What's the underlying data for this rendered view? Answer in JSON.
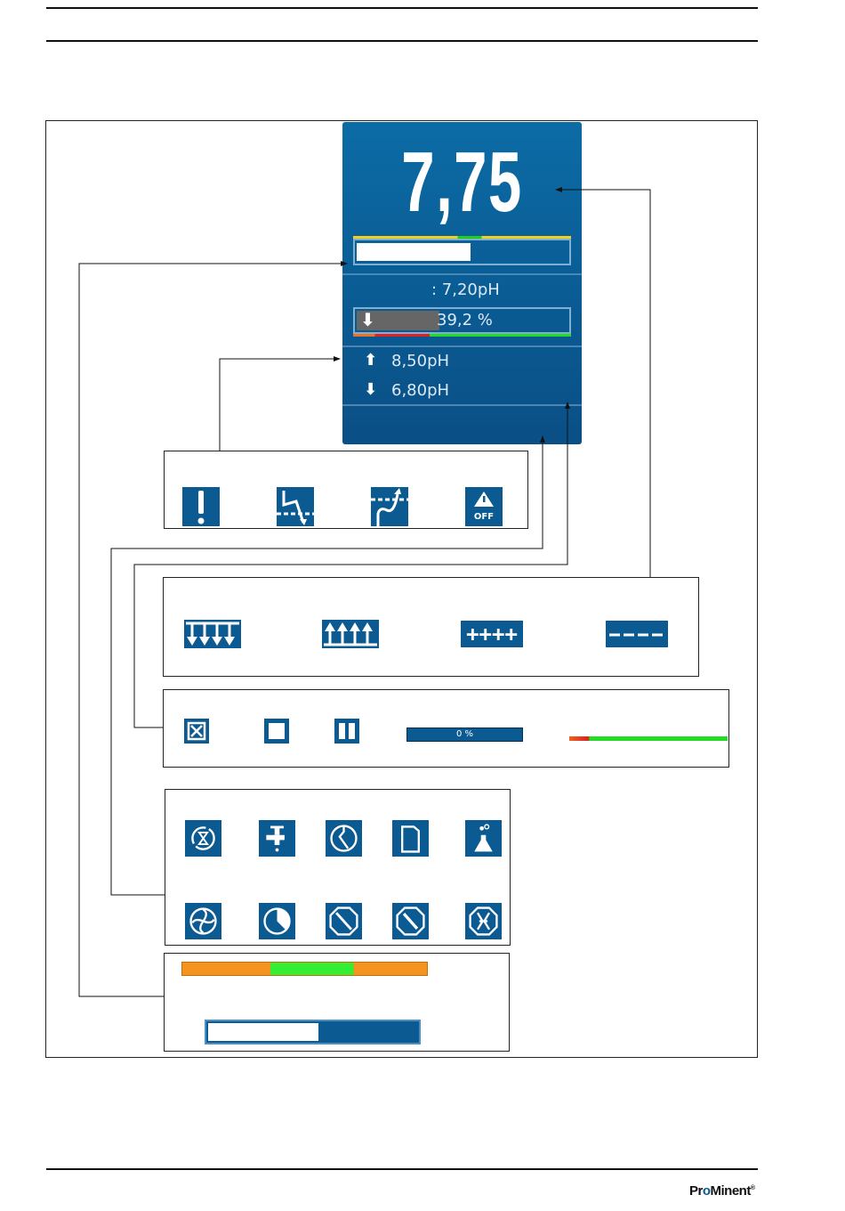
{
  "display": {
    "measured_value": "7,75",
    "measured_bar_fraction": 0.53,
    "setpoint": ": 7,20pH",
    "control_output": "39,2 %",
    "control_output_percent": 39.2,
    "control_direction_icon": "arrow-down-icon",
    "limit_upper": "8,50pH",
    "limit_lower": "6,80pH",
    "colors": {
      "background": "#0a5a92",
      "in_range": "#22cc22",
      "warning": "#f0d020",
      "alarm": "#e02020",
      "orange": "#f0961e"
    }
  },
  "panel_limit_icons": [
    "warning-exclamation-icon",
    "limit-undershoot-icon",
    "limit-overshoot-icon",
    "alarm-off-icon"
  ],
  "panel_trend_icons": [
    "trend-down-icon",
    "trend-up-icon",
    "overrange-plus-icon",
    "underrange-minus-icon"
  ],
  "panel_state_icons": [
    "stop-crossed-icon",
    "stop-icon",
    "pause-icon"
  ],
  "progress_label": "0 %",
  "progress_value": 0,
  "panel_status_icons": [
    "cycle-timer-icon",
    "faucet-icon",
    "sensor-clock-icon",
    "canister-icon",
    "lab-flask-icon",
    "pump-icon",
    "clock-icon",
    "sensor-fault-icon",
    "maintenance-icon",
    "fault-icon"
  ],
  "footer": {
    "logo": "ProMinent"
  }
}
